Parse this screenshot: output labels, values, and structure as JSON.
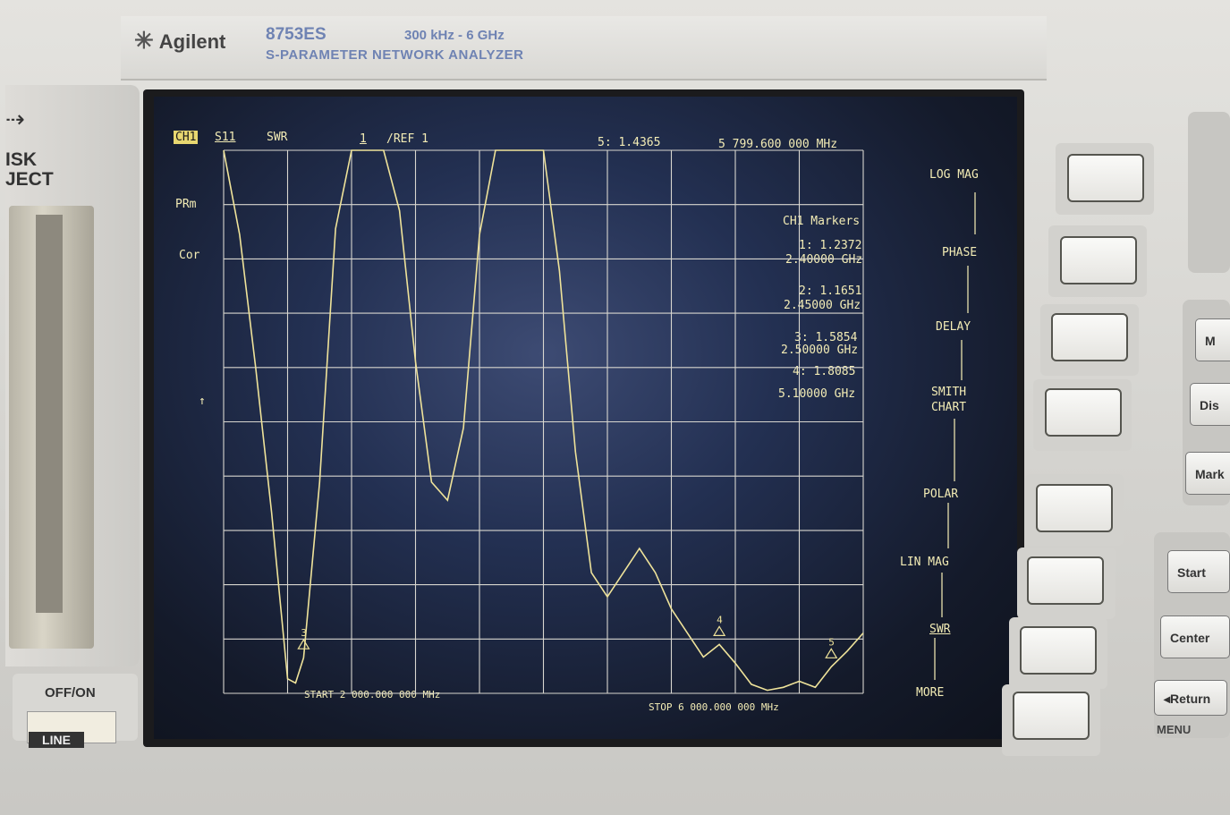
{
  "brand": {
    "logo": "Agilent",
    "model": "8753ES",
    "range": "300 kHz - 6 GHz",
    "subtitle": "S-PARAMETER NETWORK ANALYZER"
  },
  "left": {
    "disk_label_1": "ISK",
    "disk_label_2": "JECT",
    "power_label": "OFF/ON",
    "line_label": "LINE"
  },
  "display": {
    "channel": "CH1",
    "param": "S11",
    "format": "SWR",
    "scale": "1",
    "ref": "/REF 1",
    "active_marker": "5: 1.4365",
    "active_freq": "5 799.600 000 MHz",
    "pr": "PRm",
    "cor": "Cor",
    "start": "START 2 000.000 000 MHz",
    "stop": "STOP 6 000.000 000 MHz",
    "marker_title": "CH1 Markers",
    "markers": [
      {
        "value": "1: 1.2372",
        "freq": "2.40000 GHz"
      },
      {
        "value": "2: 1.1651",
        "freq": "2.45000 GHz"
      },
      {
        "value": "3: 1.5854",
        "freq": "2.50000 GHz"
      },
      {
        "value": "4: 1.8085",
        "freq": "5.10000 GHz"
      }
    ],
    "marker_labels": [
      "3",
      "4",
      "5"
    ]
  },
  "menu": [
    "LOG MAG",
    "PHASE",
    "DELAY",
    "SMITH",
    "CHART",
    "POLAR",
    "LIN MAG",
    "SWR",
    "MORE"
  ],
  "right_panel": {
    "m": "M",
    "dis": "Dis",
    "mark": "Mark",
    "start": "Start",
    "center": "Center",
    "return": "Return",
    "menu": "MENU"
  },
  "chart_data": {
    "type": "line",
    "x": [
      2.0,
      2.1,
      2.2,
      2.3,
      2.4,
      2.45,
      2.5,
      2.6,
      2.7,
      2.8,
      2.9,
      3.0,
      3.1,
      3.2,
      3.3,
      3.4,
      3.5,
      3.6,
      3.7,
      3.8,
      3.9,
      4.0,
      4.1,
      4.2,
      4.3,
      4.4,
      4.5,
      4.6,
      4.7,
      4.8,
      4.9,
      5.0,
      5.1,
      5.2,
      5.3,
      5.4,
      5.5,
      5.6,
      5.7,
      5.8,
      5.9,
      6.0
    ],
    "y": [
      10,
      8.6,
      6.4,
      4.0,
      1.24,
      1.17,
      1.59,
      4.5,
      8.7,
      10,
      10,
      10,
      9.0,
      6.5,
      4.5,
      4.2,
      5.4,
      8.6,
      10,
      10,
      10,
      10,
      8.0,
      5.0,
      3.0,
      2.6,
      3.0,
      3.4,
      3.0,
      2.4,
      2.0,
      1.6,
      1.81,
      1.5,
      1.15,
      1.05,
      1.1,
      1.2,
      1.1,
      1.44,
      1.7,
      2.0
    ],
    "ylim": [
      1,
      10
    ],
    "xlabel": "",
    "ylabel": ""
  }
}
